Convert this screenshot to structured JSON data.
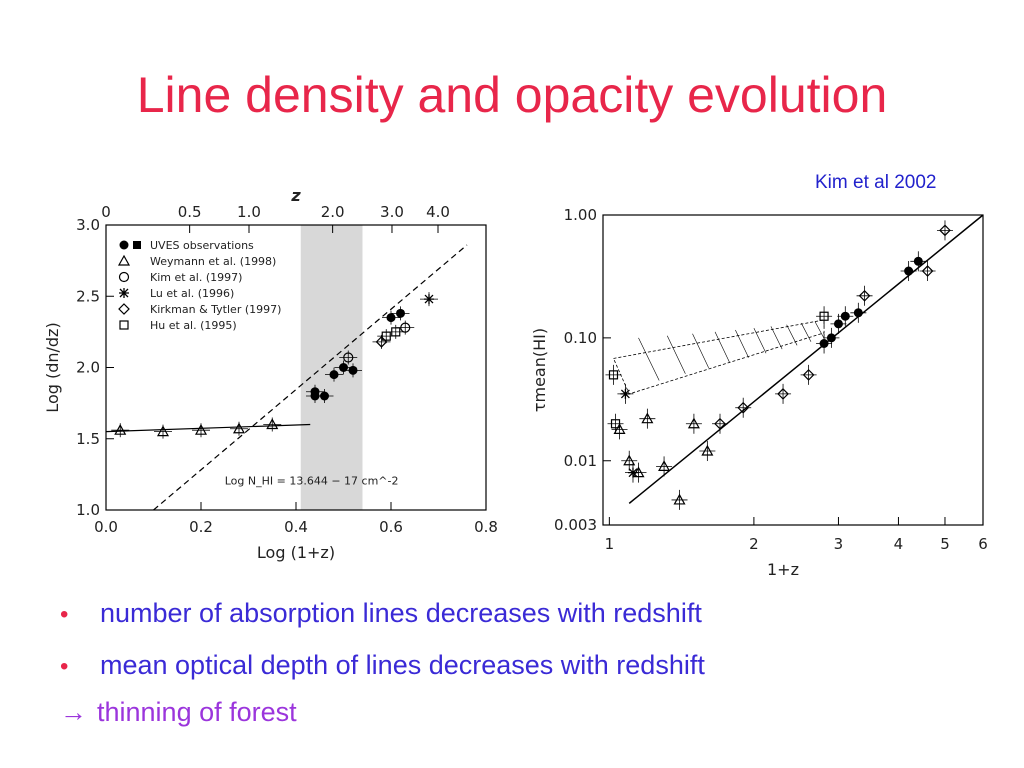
{
  "slide": {
    "title": "Line density and opacity evolution",
    "citation": "Kim et al 2002",
    "bullets": [
      "number of absorption lines decreases with redshift",
      "mean optical depth of lines decreases with redshift"
    ],
    "conclusion_arrow": "→",
    "conclusion": "thinning of forest"
  },
  "colors": {
    "title": "#e8264a",
    "bullet_text": "#3a2ad6",
    "conclusion": "#9b35dc",
    "citation": "#2222cc",
    "shading": "#d8d8d8"
  },
  "chart_data": [
    {
      "type": "scatter",
      "xlabel": "Log (1+z)",
      "ylabel": "Log (dn/dz)",
      "top_axis_label": "z",
      "xlim": [
        0.0,
        0.8
      ],
      "ylim": [
        1.0,
        3.0
      ],
      "x_ticks": [
        "0.0",
        "0.2",
        "0.4",
        "0.6",
        "0.8"
      ],
      "y_ticks": [
        "1.0",
        "1.5",
        "2.0",
        "2.5",
        "3.0"
      ],
      "top_ticks": [
        "0",
        "0.5",
        "1.0",
        "2.0",
        "3.0",
        "4.0"
      ],
      "shaded_region_x": [
        0.41,
        0.54
      ],
      "annotation": "Log N_HI = 13.644 − 17 cm^-2",
      "legend": [
        "UVES observations",
        "Weymann et al. (1998)",
        "Kim et al. (1997)",
        "Lu et al. (1996)",
        "Kirkman & Tytler (1997)",
        "Hu et al. (1995)"
      ],
      "series": [
        {
          "name": "UVES observations",
          "marker": "filled-circle",
          "x": [
            0.44,
            0.44,
            0.46,
            0.48,
            0.5,
            0.52,
            0.6,
            0.62
          ],
          "y": [
            1.83,
            1.8,
            1.8,
            1.95,
            2.0,
            1.98,
            2.35,
            2.38
          ]
        },
        {
          "name": "Weymann et al. (1998)",
          "marker": "triangle",
          "x": [
            0.03,
            0.12,
            0.2,
            0.28,
            0.35
          ],
          "y": [
            1.56,
            1.55,
            1.56,
            1.57,
            1.6
          ]
        },
        {
          "name": "Kim et al. (1997)",
          "marker": "open-circle",
          "x": [
            0.51,
            0.63
          ],
          "y": [
            2.07,
            2.28
          ]
        },
        {
          "name": "Lu et al. (1996)",
          "marker": "asterisk",
          "x": [
            0.68
          ],
          "y": [
            2.48
          ]
        },
        {
          "name": "Kirkman & Tytler (1997)",
          "marker": "diamond",
          "x": [
            0.58
          ],
          "y": [
            2.18
          ]
        },
        {
          "name": "Hu et al. (1995)",
          "marker": "open-square",
          "x": [
            0.59,
            0.61
          ],
          "y": [
            2.22,
            2.25
          ]
        }
      ],
      "lines": [
        {
          "style": "solid",
          "x": [
            0.0,
            0.43
          ],
          "y": [
            1.55,
            1.6
          ]
        },
        {
          "style": "dashed",
          "x": [
            0.1,
            0.76
          ],
          "y": [
            1.0,
            2.86
          ]
        }
      ]
    },
    {
      "type": "scatter",
      "xlabel": "1+z",
      "ylabel": "τmean(HI)",
      "xscale": "log",
      "yscale": "log",
      "xlim": [
        0.97,
        6.0
      ],
      "ylim": [
        0.003,
        1.0
      ],
      "x_ticks": [
        "1",
        "2",
        "3",
        "4",
        "5",
        "6"
      ],
      "y_ticks": [
        "0.003",
        "0.01",
        "0.10",
        "1.00"
      ],
      "series": [
        {
          "name": "filled",
          "marker": "filled-circle",
          "x": [
            2.8,
            2.9,
            3.0,
            3.1,
            3.3,
            4.2,
            4.4
          ],
          "y": [
            0.09,
            0.1,
            0.13,
            0.15,
            0.16,
            0.35,
            0.42
          ]
        },
        {
          "name": "open-triangle",
          "marker": "triangle",
          "x": [
            1.05,
            1.1,
            1.15,
            1.2,
            1.3,
            1.4,
            1.5,
            1.6
          ],
          "y": [
            0.018,
            0.01,
            0.008,
            0.022,
            0.009,
            0.0048,
            0.02,
            0.012
          ]
        },
        {
          "name": "diamond",
          "marker": "diamond",
          "x": [
            1.7,
            1.9,
            2.3,
            2.6,
            3.4,
            4.6,
            5.0
          ],
          "y": [
            0.02,
            0.027,
            0.035,
            0.05,
            0.22,
            0.35,
            0.75
          ]
        },
        {
          "name": "open-square",
          "marker": "open-square",
          "x": [
            1.02,
            1.03,
            2.8
          ],
          "y": [
            0.05,
            0.02,
            0.15
          ]
        },
        {
          "name": "asterisk",
          "marker": "asterisk",
          "x": [
            1.08,
            1.12
          ],
          "y": [
            0.035,
            0.008
          ]
        }
      ],
      "lines": [
        {
          "style": "solid",
          "x": [
            1.1,
            6.0
          ],
          "y": [
            0.0045,
            1.0
          ]
        }
      ]
    }
  ]
}
